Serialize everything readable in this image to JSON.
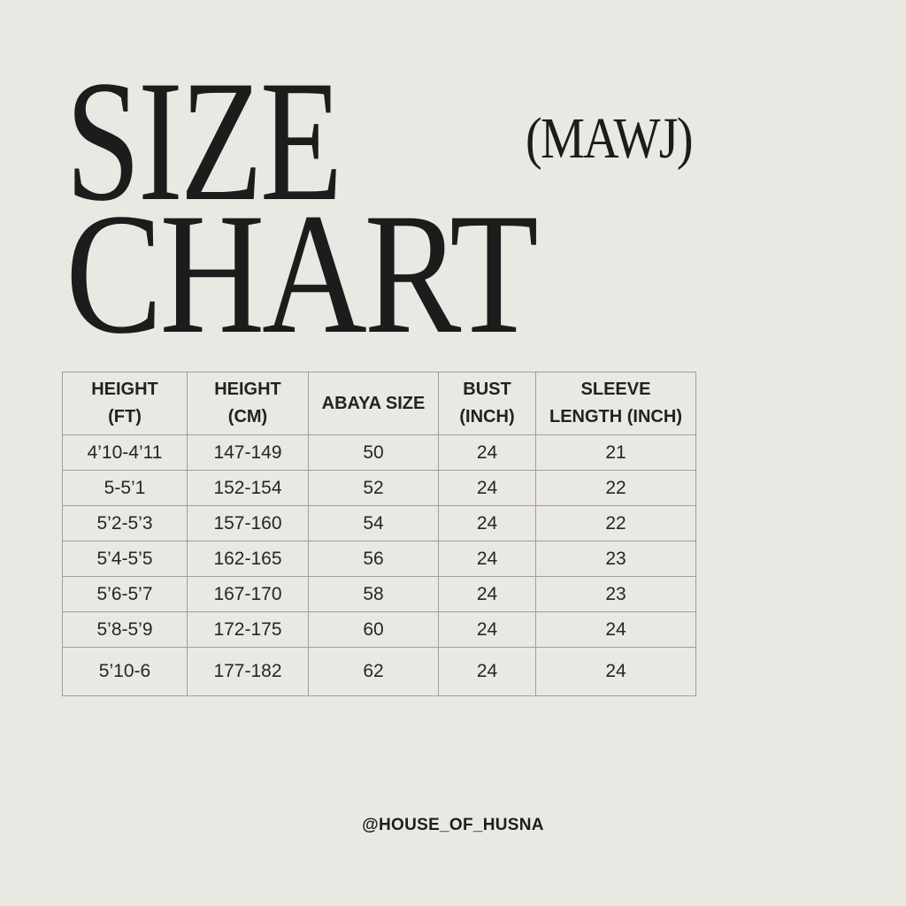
{
  "title": {
    "line1": "SIZE",
    "line2": "CHART",
    "subtitle": "(MAWJ)"
  },
  "table": {
    "headers": [
      [
        "HEIGHT",
        "(FT)"
      ],
      [
        "HEIGHT",
        "(CM)"
      ],
      [
        "ABAYA SIZE"
      ],
      [
        "BUST",
        "(INCH)"
      ],
      [
        "SLEEVE",
        "LENGTH (INCH)"
      ]
    ],
    "rows": [
      [
        "4’10-4’11",
        "147-149",
        "50",
        "24",
        "21"
      ],
      [
        "5-5’1",
        "152-154",
        "52",
        "24",
        "22"
      ],
      [
        "5’2-5’3",
        "157-160",
        "54",
        "24",
        "22"
      ],
      [
        "5’4-5’5",
        "162-165",
        "56",
        "24",
        "23"
      ],
      [
        "5’6-5’7",
        "167-170",
        "58",
        "24",
        "23"
      ],
      [
        "5’8-5’9",
        "172-175",
        "60",
        "24",
        "24"
      ],
      [
        "5’10-6",
        "177-182",
        "62",
        "24",
        "24"
      ]
    ]
  },
  "footer": {
    "handle": "@HOUSE_OF_HUSNA"
  }
}
